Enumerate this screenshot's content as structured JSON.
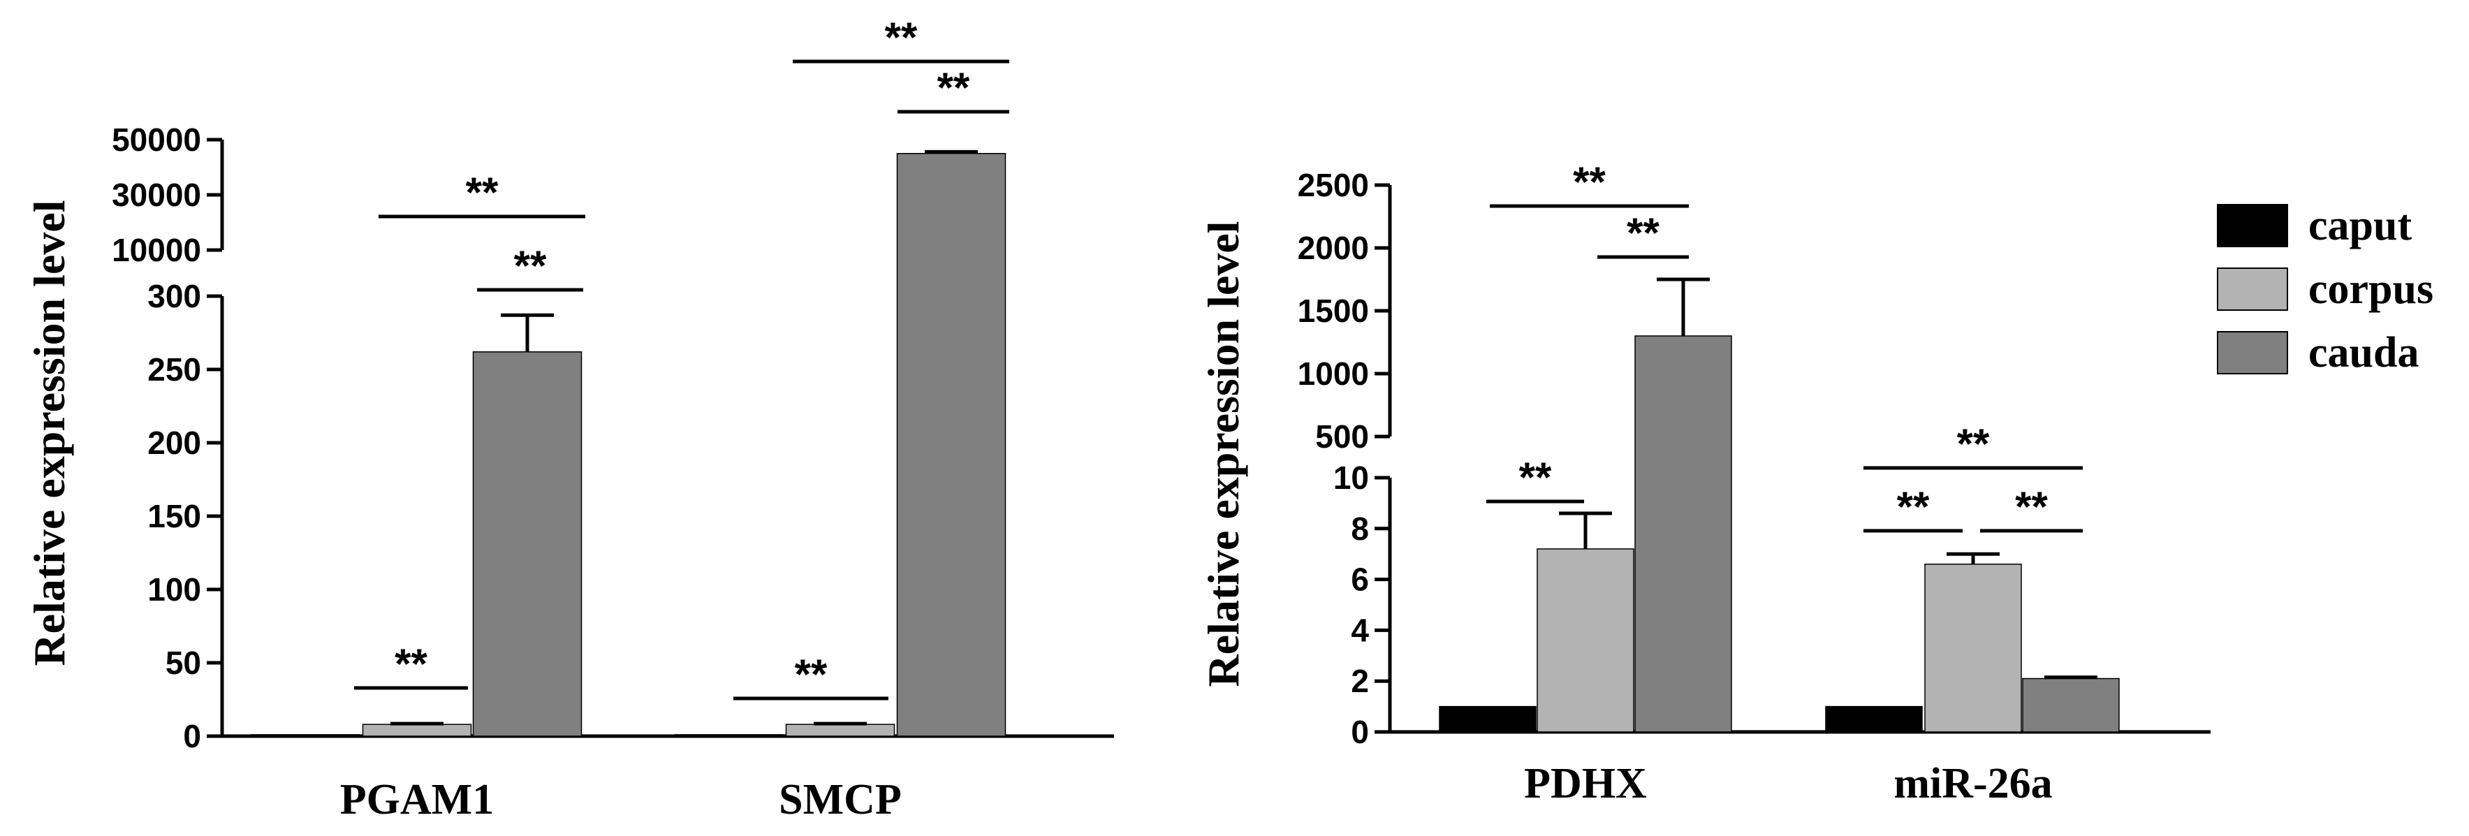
{
  "chart_data": [
    {
      "type": "bar",
      "ylabel": "Relative expression level",
      "categories": [
        "PGAM1",
        "SMCP"
      ],
      "series": [
        {
          "name": "caput",
          "values": [
            1,
            1
          ],
          "errors": [
            0,
            0
          ]
        },
        {
          "name": "corpus",
          "values": [
            8,
            8
          ],
          "errors": [
            0.5,
            0.5
          ]
        },
        {
          "name": "cauda",
          "values": [
            262,
            45000
          ],
          "errors": [
            25,
            600
          ]
        }
      ],
      "broken_axis": {
        "lower": {
          "ylim": [
            0,
            300
          ],
          "ticks": [
            "0",
            "50",
            "100",
            "150",
            "200",
            "250",
            "300"
          ]
        },
        "upper": {
          "ylim": [
            10000,
            50000
          ],
          "ticks": [
            "10000",
            "30000",
            "50000"
          ]
        }
      },
      "significance": [
        {
          "category": 0,
          "from": "caput",
          "to": "corpus",
          "label": "**"
        },
        {
          "category": 0,
          "from": "corpus",
          "to": "cauda",
          "label": "**"
        },
        {
          "category": 0,
          "from": "caput",
          "to": "cauda",
          "label": "**"
        },
        {
          "category": 1,
          "from": "caput",
          "to": "corpus",
          "label": "**"
        },
        {
          "category": 1,
          "from": "corpus",
          "to": "cauda",
          "label": "**"
        },
        {
          "category": 1,
          "from": "caput",
          "to": "cauda",
          "label": "**"
        }
      ]
    },
    {
      "type": "bar",
      "ylabel": "Relative expression level",
      "categories": [
        "PDHX",
        "miR-26a"
      ],
      "series": [
        {
          "name": "caput",
          "values": [
            1,
            1
          ],
          "errors": [
            0,
            0
          ]
        },
        {
          "name": "corpus",
          "values": [
            7.2,
            6.6
          ],
          "errors": [
            1.4,
            0.4
          ]
        },
        {
          "name": "cauda",
          "values": [
            1300,
            2.1
          ],
          "errors": [
            450,
            0.05
          ]
        }
      ],
      "broken_axis": {
        "lower": {
          "ylim": [
            0,
            10
          ],
          "ticks": [
            "0",
            "2",
            "4",
            "6",
            "8",
            "10"
          ]
        },
        "upper": {
          "ylim": [
            500,
            2500
          ],
          "ticks": [
            "500",
            "1000",
            "1500",
            "2000",
            "2500"
          ]
        }
      },
      "significance": [
        {
          "category": 0,
          "from": "caput",
          "to": "corpus",
          "label": "**"
        },
        {
          "category": 0,
          "from": "corpus",
          "to": "cauda",
          "label": "**"
        },
        {
          "category": 0,
          "from": "caput",
          "to": "cauda",
          "label": "**"
        },
        {
          "category": 1,
          "from": "caput",
          "to": "corpus",
          "label": "**"
        },
        {
          "category": 1,
          "from": "corpus",
          "to": "cauda",
          "label": "**"
        },
        {
          "category": 1,
          "from": "caput",
          "to": "cauda",
          "label": "**"
        }
      ]
    }
  ],
  "legend": {
    "placement": "right",
    "items": [
      {
        "label": "caput",
        "color": "#000000"
      },
      {
        "label": "corpus",
        "color": "#b3b3b3"
      },
      {
        "label": "cauda",
        "color": "#808080"
      }
    ]
  }
}
